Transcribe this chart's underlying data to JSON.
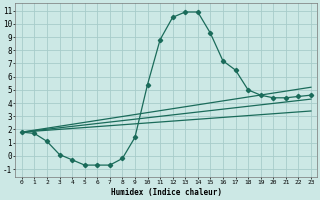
{
  "bg_color": "#cce8e5",
  "grid_color": "#a8ccca",
  "line_color": "#1a6b5a",
  "line_width": 0.9,
  "marker": "D",
  "marker_size": 2.2,
  "xlabel": "Humidex (Indice chaleur)",
  "xlim": [
    -0.5,
    23.5
  ],
  "ylim": [
    -1.6,
    11.6
  ],
  "xticks": [
    0,
    1,
    2,
    3,
    4,
    5,
    6,
    7,
    8,
    9,
    10,
    11,
    12,
    13,
    14,
    15,
    16,
    17,
    18,
    19,
    20,
    21,
    22,
    23
  ],
  "yticks": [
    -1,
    0,
    1,
    2,
    3,
    4,
    5,
    6,
    7,
    8,
    9,
    10,
    11
  ],
  "curve1_x": [
    0,
    1,
    2,
    3,
    4,
    5,
    6,
    7,
    8,
    9,
    10,
    11,
    12,
    13,
    14,
    15,
    16,
    17,
    18,
    19,
    20,
    21,
    22,
    23
  ],
  "curve1_y": [
    1.8,
    1.7,
    1.1,
    0.1,
    -0.3,
    -0.7,
    -0.7,
    -0.7,
    -0.2,
    1.4,
    5.4,
    8.8,
    10.5,
    10.9,
    10.9,
    9.3,
    7.2,
    6.5,
    5.0,
    4.6,
    4.4,
    4.4,
    4.5,
    4.6
  ],
  "curve2_x": [
    0,
    23
  ],
  "curve2_y": [
    1.8,
    5.2
  ],
  "curve3_x": [
    0,
    23
  ],
  "curve3_y": [
    1.8,
    4.3
  ],
  "curve4_x": [
    0,
    23
  ],
  "curve4_y": [
    1.8,
    3.4
  ],
  "xlabel_fontsize": 5.5,
  "tick_fontsize_x": 4.5,
  "tick_fontsize_y": 5.5
}
